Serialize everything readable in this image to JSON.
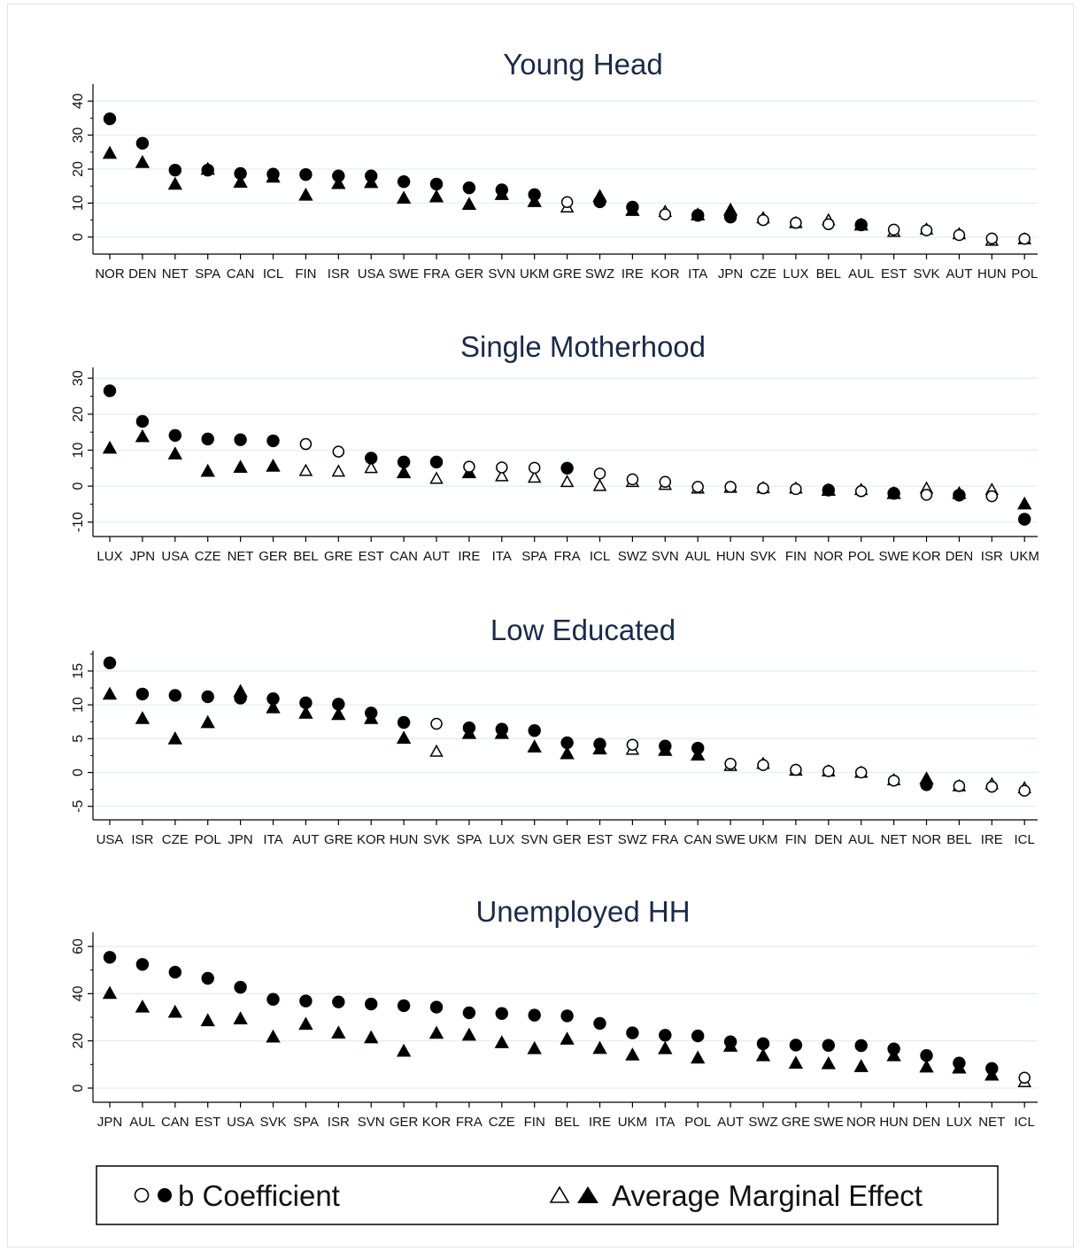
{
  "chart_data": [
    {
      "type": "scatter",
      "title": "Young Head",
      "categories": [
        "NOR",
        "DEN",
        "NET",
        "SPA",
        "CAN",
        "ICL",
        "FIN",
        "ISR",
        "USA",
        "SWE",
        "FRA",
        "GER",
        "SVN",
        "UKM",
        "GRE",
        "SWZ",
        "IRE",
        "KOR",
        "ITA",
        "JPN",
        "CZE",
        "LUX",
        "BEL",
        "AUL",
        "EST",
        "SVK",
        "AUT",
        "HUN",
        "POL"
      ],
      "ylim": [
        -5,
        45
      ],
      "yticks": [
        0,
        10,
        20,
        30,
        40
      ],
      "series": [
        {
          "name": "b Coefficient",
          "marker": "circle",
          "values": [
            34.8,
            27.6,
            19.7,
            19.7,
            18.7,
            18.5,
            18.4,
            18.0,
            18.0,
            16.3,
            15.6,
            14.5,
            13.9,
            12.5,
            10.3,
            10.4,
            8.8,
            6.7,
            6.4,
            5.9,
            5.0,
            4.2,
            3.8,
            3.6,
            2.2,
            2.0,
            0.6,
            -0.4,
            -0.5
          ],
          "filled": [
            true,
            true,
            true,
            true,
            true,
            true,
            true,
            true,
            true,
            true,
            true,
            true,
            true,
            true,
            false,
            true,
            true,
            false,
            true,
            true,
            false,
            false,
            false,
            true,
            false,
            false,
            false,
            false,
            false
          ]
        },
        {
          "name": "Average Marginal Effect",
          "marker": "triangle",
          "values": [
            24.7,
            22.0,
            15.6,
            20.0,
            16.2,
            17.7,
            12.4,
            15.8,
            16.1,
            11.5,
            11.9,
            9.7,
            12.6,
            10.5,
            8.8,
            12.0,
            7.9,
            7.5,
            6.6,
            8.0,
            5.6,
            4.2,
            5.0,
            3.6,
            1.6,
            2.3,
            0.9,
            -1.0,
            -0.6
          ],
          "filled": [
            true,
            true,
            true,
            true,
            true,
            true,
            true,
            true,
            true,
            true,
            true,
            true,
            true,
            true,
            false,
            true,
            true,
            false,
            true,
            true,
            false,
            false,
            false,
            true,
            false,
            false,
            false,
            false,
            false
          ]
        }
      ]
    },
    {
      "type": "scatter",
      "title": "Single Motherhood",
      "categories": [
        "LUX",
        "JPN",
        "USA",
        "CZE",
        "NET",
        "GER",
        "BEL",
        "GRE",
        "EST",
        "CAN",
        "AUT",
        "IRE",
        "ITA",
        "SPA",
        "FRA",
        "ICL",
        "SWZ",
        "SVN",
        "AUL",
        "HUN",
        "SVK",
        "FIN",
        "NOR",
        "POL",
        "SWE",
        "KOR",
        "DEN",
        "ISR",
        "UKM"
      ],
      "ylim": [
        -14,
        33
      ],
      "yticks": [
        -10,
        0,
        10,
        20,
        30
      ],
      "series": [
        {
          "name": "b Coefficient",
          "marker": "circle",
          "values": [
            26.5,
            18.0,
            14.1,
            13.1,
            12.9,
            12.6,
            11.7,
            9.6,
            7.8,
            6.7,
            6.7,
            5.4,
            5.2,
            5.1,
            5.0,
            3.5,
            1.9,
            1.2,
            -0.2,
            -0.2,
            -0.6,
            -0.8,
            -1.1,
            -1.4,
            -2.0,
            -2.4,
            -2.5,
            -2.8,
            -9.2
          ],
          "filled": [
            true,
            true,
            true,
            true,
            true,
            true,
            false,
            false,
            true,
            true,
            true,
            false,
            false,
            false,
            true,
            false,
            false,
            false,
            false,
            false,
            false,
            false,
            true,
            false,
            true,
            false,
            true,
            false,
            true
          ]
        },
        {
          "name": "Average Marginal Effect",
          "marker": "triangle",
          "values": [
            10.6,
            13.8,
            9.0,
            4.2,
            5.3,
            5.6,
            4.3,
            4.1,
            5.1,
            3.8,
            2.1,
            3.8,
            2.8,
            2.4,
            1.2,
            0.1,
            1.2,
            0.4,
            -0.6,
            -0.4,
            -0.5,
            -0.6,
            -1.1,
            -1.0,
            -2.0,
            -0.6,
            -2.0,
            -1.0,
            -4.9
          ],
          "filled": [
            true,
            true,
            true,
            true,
            true,
            true,
            false,
            false,
            false,
            true,
            false,
            true,
            false,
            false,
            false,
            false,
            false,
            false,
            false,
            false,
            false,
            false,
            true,
            false,
            true,
            false,
            true,
            false,
            true
          ]
        }
      ]
    },
    {
      "type": "scatter",
      "title": "Low Educated",
      "categories": [
        "USA",
        "ISR",
        "CZE",
        "POL",
        "JPN",
        "ITA",
        "AUT",
        "GRE",
        "KOR",
        "HUN",
        "SVK",
        "SPA",
        "LUX",
        "SVN",
        "GER",
        "EST",
        "SWZ",
        "FRA",
        "CAN",
        "SWE",
        "UKM",
        "FIN",
        "DEN",
        "AUL",
        "NET",
        "NOR",
        "BEL",
        "IRE",
        "ICL"
      ],
      "ylim": [
        -7,
        18
      ],
      "yticks": [
        -5,
        0,
        5,
        10,
        15
      ],
      "series": [
        {
          "name": "b Coefficient",
          "marker": "circle",
          "values": [
            16.2,
            11.6,
            11.4,
            11.2,
            11.0,
            10.9,
            10.3,
            10.1,
            8.8,
            7.4,
            7.2,
            6.6,
            6.4,
            6.2,
            4.4,
            4.2,
            4.1,
            3.9,
            3.6,
            1.3,
            1.1,
            0.4,
            0.2,
            0.0,
            -1.2,
            -1.8,
            -2.0,
            -2.1,
            -2.7
          ],
          "filled": [
            true,
            true,
            true,
            true,
            true,
            true,
            true,
            true,
            true,
            true,
            false,
            true,
            true,
            true,
            true,
            true,
            false,
            true,
            true,
            false,
            false,
            false,
            false,
            false,
            false,
            true,
            false,
            false,
            false
          ]
        },
        {
          "name": "Average Marginal Effect",
          "marker": "triangle",
          "values": [
            11.6,
            8.0,
            5.0,
            7.4,
            12.0,
            9.6,
            8.8,
            8.6,
            8.0,
            5.1,
            3.1,
            5.8,
            5.8,
            3.8,
            2.8,
            3.5,
            3.4,
            3.3,
            2.6,
            1.0,
            1.3,
            0.3,
            0.2,
            0.0,
            -1.1,
            -0.9,
            -2.0,
            -1.7,
            -2.3
          ],
          "filled": [
            true,
            true,
            true,
            true,
            true,
            true,
            true,
            true,
            true,
            true,
            false,
            true,
            true,
            true,
            true,
            true,
            false,
            true,
            true,
            false,
            false,
            false,
            false,
            false,
            false,
            true,
            false,
            false,
            false
          ]
        }
      ]
    },
    {
      "type": "scatter",
      "title": "Unemployed HH",
      "categories": [
        "JPN",
        "AUL",
        "CAN",
        "EST",
        "USA",
        "SVK",
        "SPA",
        "ISR",
        "SVN",
        "GER",
        "KOR",
        "FRA",
        "CZE",
        "FIN",
        "BEL",
        "IRE",
        "UKM",
        "ITA",
        "POL",
        "AUT",
        "SWZ",
        "GRE",
        "SWE",
        "NOR",
        "HUN",
        "DEN",
        "LUX",
        "NET",
        "ICL"
      ],
      "ylim": [
        -6,
        66
      ],
      "yticks": [
        0,
        20,
        40,
        60
      ],
      "series": [
        {
          "name": "b Coefficient",
          "marker": "circle",
          "values": [
            55.4,
            52.4,
            49.1,
            46.5,
            42.7,
            37.6,
            36.9,
            36.5,
            35.6,
            34.9,
            34.3,
            31.9,
            31.6,
            30.9,
            30.6,
            27.4,
            23.4,
            22.4,
            22.1,
            19.6,
            18.8,
            18.2,
            18.1,
            18.0,
            16.6,
            13.8,
            10.6,
            8.3,
            4.4
          ],
          "filled": [
            true,
            true,
            true,
            true,
            true,
            true,
            true,
            true,
            true,
            true,
            true,
            true,
            true,
            true,
            true,
            true,
            true,
            true,
            true,
            true,
            true,
            true,
            true,
            true,
            true,
            true,
            true,
            true,
            false
          ]
        },
        {
          "name": "Average Marginal Effect",
          "marker": "triangle",
          "values": [
            40.2,
            34.4,
            32.2,
            28.6,
            29.4,
            21.7,
            27.1,
            23.4,
            21.4,
            15.7,
            23.3,
            22.5,
            19.3,
            16.8,
            20.8,
            16.9,
            14.1,
            16.8,
            12.8,
            17.8,
            13.8,
            10.6,
            10.4,
            9.2,
            13.8,
            9.0,
            8.6,
            5.6,
            2.6
          ],
          "filled": [
            true,
            true,
            true,
            true,
            true,
            true,
            true,
            true,
            true,
            true,
            true,
            true,
            true,
            true,
            true,
            true,
            true,
            true,
            true,
            true,
            true,
            true,
            true,
            true,
            true,
            true,
            true,
            true,
            false
          ]
        }
      ]
    }
  ],
  "legend": {
    "entries": [
      {
        "label": "b Coefficient",
        "marker": "circle"
      },
      {
        "label": "Average Marginal Effect",
        "marker": "triangle"
      }
    ],
    "position": "bottom"
  }
}
